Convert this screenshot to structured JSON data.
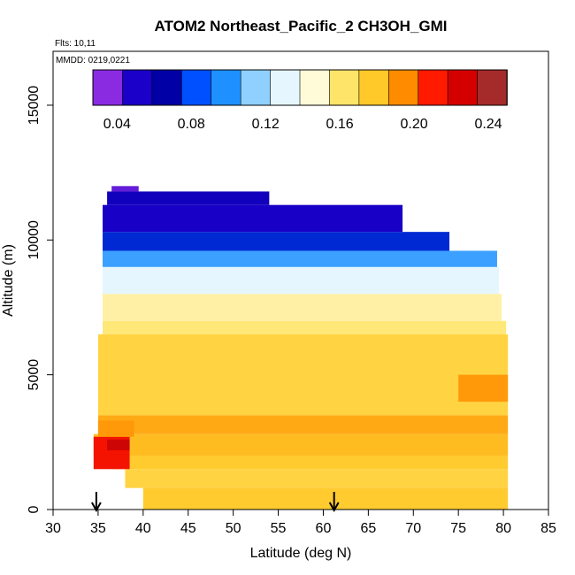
{
  "chart_data": {
    "type": "heatmap",
    "title": "ATOM2 Northeast_Pacific_2 CH3OH_GMI",
    "flights_label": "Flts: 10,11",
    "mmdd_label": "MMDD: 0219,0221",
    "xlabel": "Latitude (deg N)",
    "ylabel": "Altitude (m)",
    "xlim": [
      30,
      85
    ],
    "ylim": [
      0,
      17000
    ],
    "x_ticks": [
      "30",
      "35",
      "40",
      "45",
      "50",
      "55",
      "60",
      "65",
      "70",
      "75",
      "80",
      "85"
    ],
    "y_ticks": [
      "0",
      "5000",
      "10000",
      "15000"
    ],
    "colorbar": {
      "range": [
        0.027,
        0.25
      ],
      "tick_values": [
        0.04,
        0.08,
        0.12,
        0.16,
        0.2,
        0.24
      ],
      "tick_labels": [
        "0.04",
        "0.08",
        "0.12",
        "0.16",
        "0.20",
        "0.24"
      ],
      "colors": [
        "#8a2be2",
        "#1a00c8",
        "#0000a6",
        "#0050ff",
        "#1e90ff",
        "#8fd0ff",
        "#e6f6ff",
        "#fffbd8",
        "#ffe46a",
        "#ffc92a",
        "#ff8c00",
        "#ff1a00",
        "#d40000",
        "#a52a2a"
      ]
    },
    "arrows_latitude": [
      34.8,
      61.2
    ],
    "curtain": [
      {
        "alt": [
          0,
          800
        ],
        "lat": [
          40,
          80.5
        ],
        "value": 0.18
      },
      {
        "alt": [
          800,
          1500
        ],
        "lat": [
          38,
          80.5
        ],
        "value": 0.175
      },
      {
        "alt": [
          1500,
          2000
        ],
        "lat": [
          36.5,
          80.5
        ],
        "value": 0.18
      },
      {
        "alt": [
          2000,
          2800
        ],
        "lat": [
          34.5,
          80.5
        ],
        "value": 0.185
      },
      {
        "alt": [
          2800,
          3500
        ],
        "lat": [
          35,
          80.5
        ],
        "value": 0.19
      },
      {
        "alt": [
          3500,
          6500
        ],
        "lat": [
          35,
          80.5
        ],
        "value": 0.175
      },
      {
        "alt": [
          6500,
          7000
        ],
        "lat": [
          35.5,
          80.3
        ],
        "value": 0.162
      },
      {
        "alt": [
          7000,
          8000
        ],
        "lat": [
          35.5,
          79.8
        ],
        "value": 0.155
      },
      {
        "alt": [
          8000,
          9000
        ],
        "lat": [
          35.5,
          79.5
        ],
        "value": 0.13
      },
      {
        "alt": [
          9000,
          9600
        ],
        "lat": [
          35.5,
          79.3
        ],
        "value": 0.1
      },
      {
        "alt": [
          9600,
          10300
        ],
        "lat": [
          35.5,
          74
        ],
        "value": 0.07
      },
      {
        "alt": [
          10300,
          11300
        ],
        "lat": [
          35.5,
          68.8
        ],
        "value": 0.045
      },
      {
        "alt": [
          11300,
          11800
        ],
        "lat": [
          36,
          54
        ],
        "value": 0.05
      },
      {
        "alt": [
          11800,
          12000
        ],
        "lat": [
          36.5,
          39.5
        ],
        "value": 0.033
      }
    ],
    "highlights": [
      {
        "alt": [
          1500,
          2700
        ],
        "lat": [
          34.5,
          38.5
        ],
        "value": 0.22
      },
      {
        "alt": [
          2700,
          3300
        ],
        "lat": [
          35,
          39
        ],
        "value": 0.195
      },
      {
        "alt": [
          4000,
          5000
        ],
        "lat": [
          75,
          80.5
        ],
        "value": 0.195
      },
      {
        "alt": [
          2200,
          2600
        ],
        "lat": [
          36,
          38.5
        ],
        "value": 0.235
      }
    ]
  }
}
